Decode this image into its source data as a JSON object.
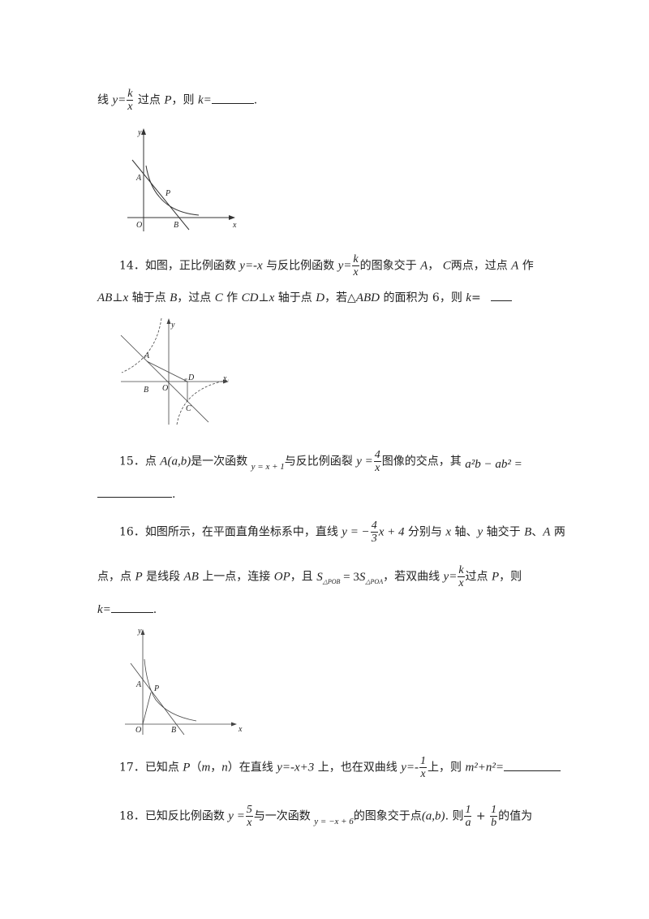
{
  "q13_tail": {
    "pre": "线",
    "y": "y=",
    "num": "k",
    "den": "x",
    "mid": "过点",
    "P": "P",
    "then": "，则",
    "k": "k=",
    "end": "."
  },
  "fig13": {
    "labels": {
      "y": "y",
      "x": "x",
      "O": "O",
      "A": "A",
      "B": "B",
      "P": "P"
    }
  },
  "q14": {
    "num": "14．",
    "t1": "如图，正比例函数",
    "eq1": "y=-x",
    "t2": "与反比例函数",
    "y": "y=",
    "fnum": "k",
    "fden": "x",
    "t3": "的图象交于",
    "A": "A",
    "t4": "，",
    "C": "C",
    "t5": "两点，过点",
    "A2": "A",
    "t6": "作",
    "l2a": "AB",
    "l2b": "⊥",
    "l2c": "x",
    "l2d": "轴于点",
    "l2e": "B",
    "l2f": "，过点",
    "l2g": "C",
    "l2h": "作",
    "l2i": "CD",
    "l2j": "⊥",
    "l2k": "x",
    "l2l": "轴于点",
    "l2m": "D",
    "l2n": "，若△",
    "l2o": "ABD",
    "l2p": "的面积为 6，则",
    "l2q": "k",
    "l2r": "="
  },
  "fig14": {
    "labels": {
      "y": "y",
      "x": "x",
      "O": "O",
      "A": "A",
      "B": "B",
      "C": "C",
      "D": "D"
    }
  },
  "q15": {
    "num": "15．",
    "t1": "点",
    "pt": "A(a,b)",
    "t2": "是一次函数",
    "eq1": "y = x + 1",
    "t3": "与反比例函裂",
    "y": "y =",
    "fnum": "4",
    "fden": "x",
    "t4": "图像的交点，其",
    "expr": "a²b − ab² =",
    "end": "."
  },
  "q16": {
    "num": "16．",
    "t1": "如图所示，在平面直角坐标系中，直线",
    "y": "y = −",
    "fnum": "4",
    "fden": "3",
    "t2": "x + 4",
    "t3": "分别与",
    "x": "x",
    "t4": "轴、",
    "yv": "y",
    "t5": "轴交于",
    "B": "B",
    "t6": "、",
    "A": "A",
    "t7": "两",
    "l2a": "点，点",
    "l2b": "P",
    "l2c": "是线段",
    "l2d": "AB",
    "l2e": "上一点，连接",
    "l2f": "OP",
    "l2g": "，且",
    "S1": "S",
    "sub1": "△POB",
    "eq": " = 3",
    "S2": "S",
    "sub2": "△POA",
    "l2h": "，若双曲线",
    "l2y": "y=",
    "l2num": "k",
    "l2den": "x",
    "l2i": "过点",
    "l2P": "P",
    "l2j": "，则",
    "l3": "k=",
    "end": "."
  },
  "fig16": {
    "labels": {
      "y": "y",
      "x": "x",
      "O": "O",
      "A": "A",
      "B": "B",
      "P": "P"
    }
  },
  "q17": {
    "num": "17．",
    "t1": "已知点",
    "P": "P",
    "t2": "（",
    "m": "m",
    "t3": "，",
    "n": "n",
    "t4": "）在直线",
    "eq1": "y=-x+3",
    "t5": "上，也在双曲线",
    "y": "y=-",
    "fnum": "1",
    "fden": "x",
    "t6": "上，则",
    "expr": "m²+n²="
  },
  "q18": {
    "num": "18．",
    "t1": "已知反比例函数",
    "y": "y =",
    "fnum": "5",
    "fden": "x",
    "t2": "与一次函数",
    "eq1": "y = −x + 6",
    "t3": "的图象交于点",
    "pt": "(a,b)",
    "t4": ". 则",
    "f1num": "1",
    "f1den": "a",
    "plus": "+",
    "f2num": "1",
    "f2den": "b",
    "t5": "的值为"
  }
}
